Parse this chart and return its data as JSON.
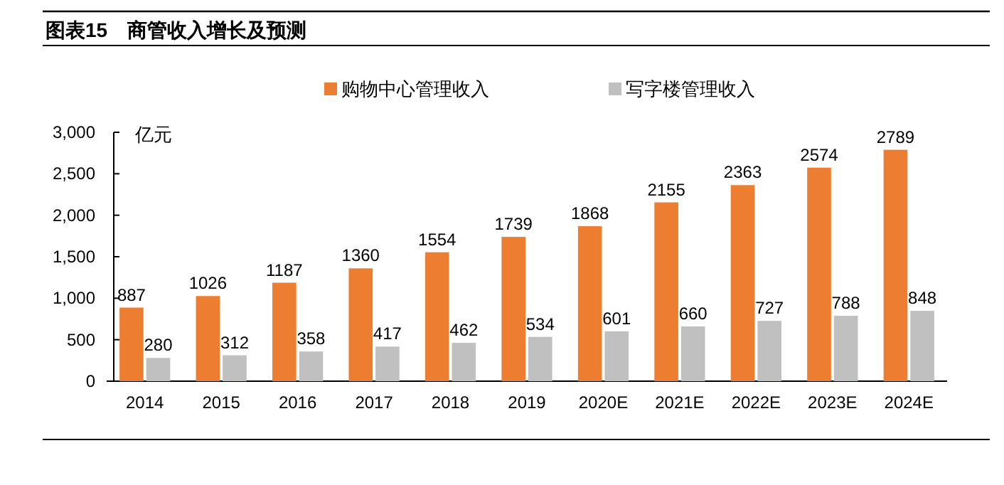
{
  "chart_data": {
    "type": "bar",
    "title": "图表15　商管收入增长及预测",
    "ylabel": "亿元",
    "categories": [
      "2014",
      "2015",
      "2016",
      "2017",
      "2018",
      "2019",
      "2020E",
      "2021E",
      "2022E",
      "2023E",
      "2024E"
    ],
    "series": [
      {
        "name": "购物中心管理收入",
        "color": "#ed7d31",
        "values": [
          887,
          1026,
          1187,
          1360,
          1554,
          1739,
          1868,
          2155,
          2363,
          2574,
          2789
        ]
      },
      {
        "name": "写字楼管理收入",
        "color": "#c0c0c0",
        "values": [
          280,
          312,
          358,
          417,
          462,
          534,
          601,
          660,
          727,
          788,
          848
        ]
      }
    ],
    "ylim": [
      0,
      3000
    ],
    "yticks": [
      {
        "value": 0,
        "label": "0"
      },
      {
        "value": 500,
        "label": "500"
      },
      {
        "value": 1000,
        "label": "1,000"
      },
      {
        "value": 1500,
        "label": "1,500"
      },
      {
        "value": 2000,
        "label": "2,000"
      },
      {
        "value": 2500,
        "label": "2,500"
      },
      {
        "value": 3000,
        "label": "3,000"
      }
    ],
    "data_labels": true,
    "legend": "top",
    "grid": false
  }
}
